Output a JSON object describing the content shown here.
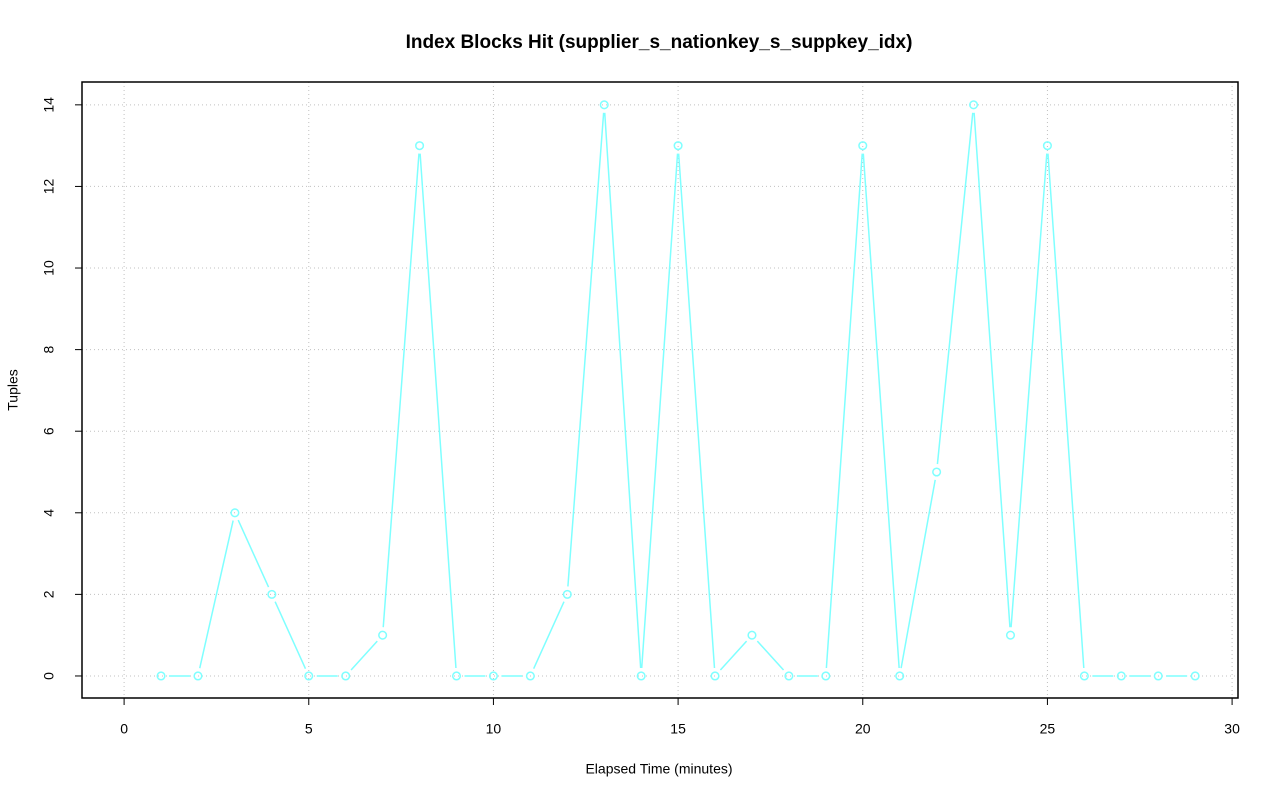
{
  "chart_data": {
    "type": "line",
    "title": "Index Blocks Hit (supplier_s_nationkey_s_suppkey_idx)",
    "x_label": "Elapsed Time (minutes)",
    "y_label": "Tuples",
    "x": [
      1,
      2,
      3,
      4,
      5,
      6,
      7,
      8,
      9,
      10,
      11,
      12,
      13,
      14,
      15,
      16,
      17,
      18,
      19,
      20,
      21,
      22,
      23,
      24,
      25,
      26,
      27,
      28,
      29
    ],
    "series": [
      {
        "color": "#7fffff",
        "values": [
          0,
          0,
          4,
          2,
          0,
          0,
          1,
          13,
          0,
          0,
          0,
          2,
          14,
          0,
          13,
          0,
          1,
          0,
          0,
          13,
          0,
          5,
          14,
          1,
          13,
          0,
          0,
          0,
          0
        ]
      }
    ],
    "xlim": [
      -1.14,
      30.16
    ],
    "xticks": [
      0,
      5,
      10,
      15,
      20,
      25,
      30
    ],
    "ylim": [
      -0.54,
      14.56
    ],
    "yticks": [
      0,
      2,
      4,
      6,
      8,
      10,
      12,
      14
    ],
    "grid": true
  }
}
